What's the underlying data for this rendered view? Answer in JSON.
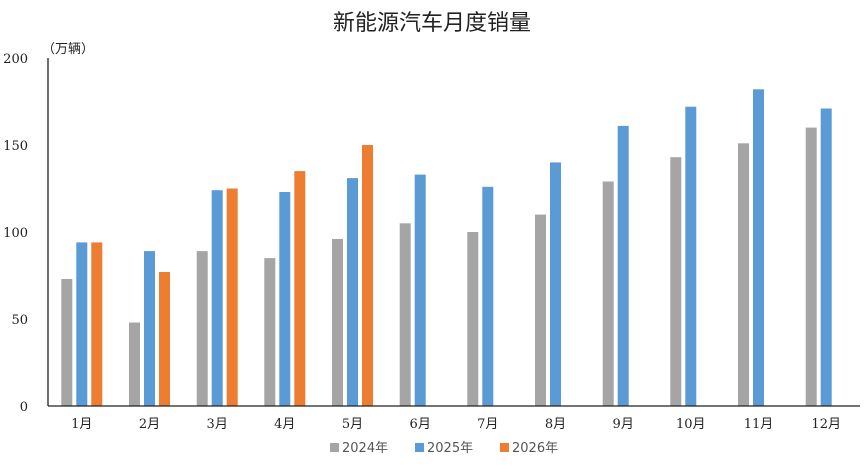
{
  "chart_data": {
    "type": "bar",
    "title": "新能源汽车月度销量",
    "unit_label": "（万辆）",
    "categories": [
      "1月",
      "2月",
      "3月",
      "4月",
      "5月",
      "6月",
      "7月",
      "8月",
      "9月",
      "10月",
      "11月",
      "12月"
    ],
    "series": [
      {
        "name": "2024年",
        "color": "#a5a5a5",
        "values": [
          73,
          48,
          89,
          85,
          96,
          105,
          100,
          110,
          129,
          143,
          151,
          160
        ]
      },
      {
        "name": "2025年",
        "color": "#5b9bd5",
        "values": [
          94,
          89,
          124,
          123,
          131,
          133,
          126,
          140,
          161,
          172,
          182,
          171
        ]
      },
      {
        "name": "2026年",
        "color": "#ed7d31",
        "values": [
          94,
          77,
          125,
          135,
          150,
          null,
          null,
          null,
          null,
          null,
          null,
          null
        ]
      }
    ],
    "ylim": [
      0,
      200
    ],
    "yticks": [
      0,
      50,
      100,
      150,
      200
    ],
    "grid": false,
    "legend_position": "bottom"
  }
}
